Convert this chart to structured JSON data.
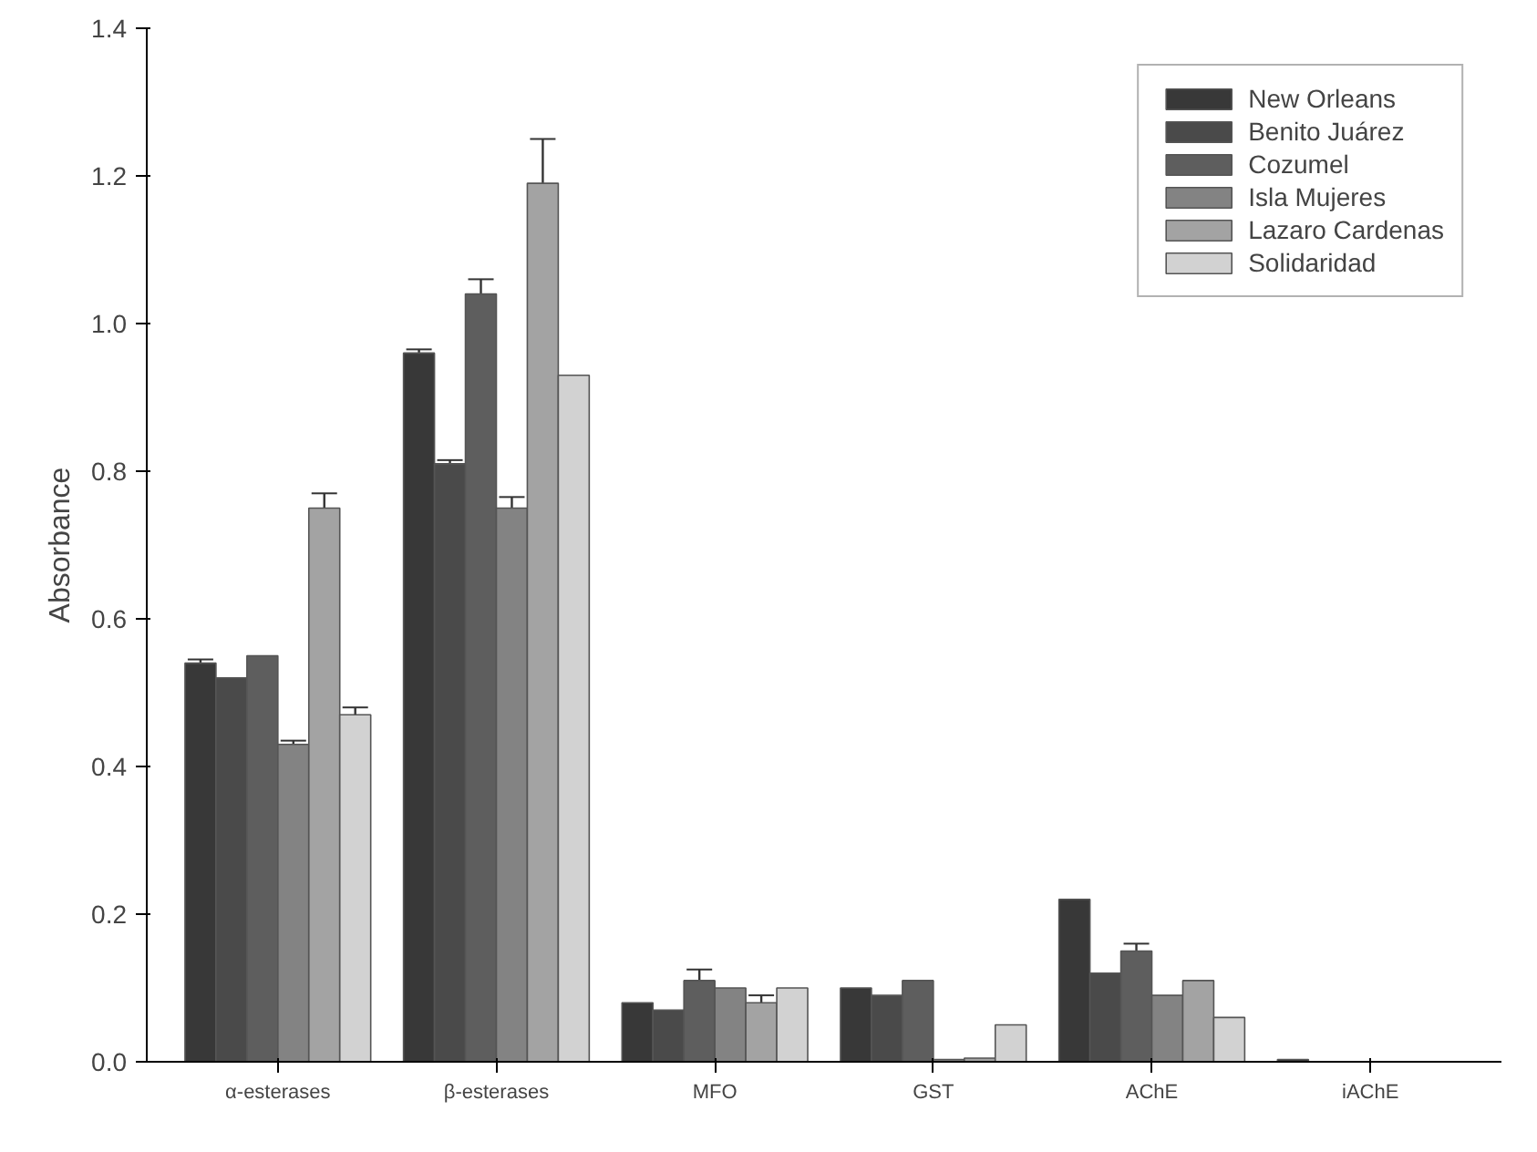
{
  "chart_data": {
    "type": "bar",
    "ylabel": "Absorbance",
    "categories": [
      "α-esterases",
      "β-esterases",
      "MFO",
      "GST",
      "AChE",
      "iAChE"
    ],
    "series": [
      {
        "name": "New Orleans",
        "color": "#383838",
        "values": [
          0.54,
          0.96,
          0.08,
          0.1,
          0.22,
          0.003
        ],
        "errors": [
          0.005,
          0.005,
          null,
          null,
          null,
          null
        ]
      },
      {
        "name": "Benito Juárez",
        "color": "#4a4a4a",
        "values": [
          0.52,
          0.81,
          0.07,
          0.09,
          0.12,
          null
        ],
        "errors": [
          null,
          0.005,
          null,
          null,
          null,
          null
        ]
      },
      {
        "name": "Cozumel",
        "color": "#5e5e5e",
        "values": [
          0.55,
          1.04,
          0.11,
          0.11,
          0.15,
          null
        ],
        "errors": [
          null,
          0.02,
          0.015,
          null,
          0.01,
          null
        ]
      },
      {
        "name": "Isla Mujeres",
        "color": "#838383",
        "values": [
          0.43,
          0.75,
          0.1,
          0.003,
          0.09,
          null
        ],
        "errors": [
          0.005,
          0.015,
          null,
          null,
          null,
          null
        ]
      },
      {
        "name": "Lazaro Cardenas",
        "color": "#a3a3a3",
        "values": [
          0.75,
          1.19,
          0.08,
          0.005,
          0.11,
          null
        ],
        "errors": [
          0.02,
          0.06,
          0.01,
          null,
          null,
          null
        ]
      },
      {
        "name": "Solidaridad",
        "color": "#d2d2d2",
        "values": [
          0.47,
          0.93,
          0.1,
          0.05,
          0.06,
          null
        ],
        "errors": [
          0.01,
          null,
          null,
          null,
          null,
          null
        ]
      }
    ],
    "ylim": [
      0,
      1.4
    ],
    "yticks": [
      {
        "value": 0,
        "label": "0.0"
      },
      0.2,
      0.4,
      0.6,
      0.8,
      {
        "value": 1,
        "label": "1.0"
      },
      1.2,
      1.4
    ],
    "grid": false,
    "legend": "top right"
  }
}
